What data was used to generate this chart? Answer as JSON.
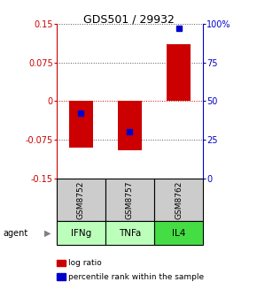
{
  "title": "GDS501 / 29932",
  "samples": [
    "GSM8752",
    "GSM8757",
    "GSM8762"
  ],
  "agents": [
    "IFNg",
    "TNFa",
    "IL4"
  ],
  "log_ratios": [
    -0.09,
    -0.095,
    0.11
  ],
  "percentiles": [
    42,
    30,
    97
  ],
  "ylim_left": [
    -0.15,
    0.15
  ],
  "ylim_right": [
    0,
    100
  ],
  "yticks_left": [
    -0.15,
    -0.075,
    0,
    0.075,
    0.15
  ],
  "ytick_labels_left": [
    "-0.15",
    "-0.075",
    "0",
    "0.075",
    "0.15"
  ],
  "yticks_right": [
    0,
    25,
    50,
    75,
    100
  ],
  "ytick_labels_right": [
    "0",
    "25",
    "50",
    "75",
    "100%"
  ],
  "bar_color": "#cc0000",
  "square_color": "#0000cc",
  "agent_colors": [
    "#bbffbb",
    "#bbffbb",
    "#44dd44"
  ],
  "sample_bg_color": "#cccccc",
  "left_axis_color": "#cc0000",
  "right_axis_color": "#0000cc",
  "bar_width": 0.5,
  "hgrid_color": "#555555",
  "zero_line_color": "#cc0000"
}
